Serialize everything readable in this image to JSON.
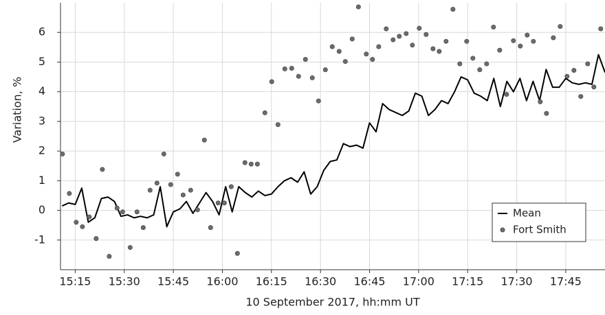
{
  "chart_data": {
    "type": "line",
    "x_label": "10 September 2017, hh:mm UT",
    "y_label": "Variation, %",
    "xlim": [
      910.5,
      1077
    ],
    "ylim": [
      -2,
      7
    ],
    "xticks": [
      {
        "value": 915,
        "label": "15:15"
      },
      {
        "value": 930,
        "label": "15:30"
      },
      {
        "value": 945,
        "label": "15:45"
      },
      {
        "value": 960,
        "label": "16:00"
      },
      {
        "value": 975,
        "label": "16:15"
      },
      {
        "value": 990,
        "label": "16:30"
      },
      {
        "value": 1005,
        "label": "16:45"
      },
      {
        "value": 1020,
        "label": "17:00"
      },
      {
        "value": 1035,
        "label": "17:15"
      },
      {
        "value": 1050,
        "label": "17:30"
      },
      {
        "value": 1065,
        "label": "17:45"
      }
    ],
    "yticks": [
      -1,
      0,
      1,
      2,
      3,
      4,
      5,
      6
    ],
    "grid": true,
    "legend": "lower right",
    "series": [
      {
        "name": "Mean",
        "color": "#000000",
        "style": "line",
        "x": [
          911,
          913,
          915,
          917,
          919,
          921,
          923,
          925,
          927,
          929,
          931,
          933,
          935,
          937,
          939,
          941,
          943,
          945,
          947,
          949,
          951,
          953,
          955,
          957,
          959,
          961,
          963,
          965,
          967,
          969,
          971,
          973,
          975,
          977,
          979,
          981,
          983,
          985,
          987,
          989,
          991,
          993,
          995,
          997,
          999,
          1001,
          1003,
          1005,
          1007,
          1009,
          1011,
          1013,
          1015,
          1017,
          1019,
          1021,
          1023,
          1025,
          1027,
          1029,
          1031,
          1033,
          1035,
          1037,
          1039,
          1041,
          1043,
          1045,
          1047,
          1049,
          1051,
          1053,
          1055,
          1057,
          1059,
          1061,
          1063,
          1065,
          1067,
          1069,
          1071,
          1073,
          1075,
          1077
        ],
        "values": [
          0.15,
          0.25,
          0.2,
          0.75,
          -0.4,
          -0.25,
          0.4,
          0.45,
          0.3,
          -0.2,
          -0.15,
          -0.25,
          -0.2,
          -0.25,
          -0.15,
          0.8,
          -0.55,
          -0.05,
          0.05,
          0.3,
          -0.1,
          0.25,
          0.6,
          0.3,
          -0.15,
          0.8,
          -0.05,
          0.8,
          0.6,
          0.45,
          0.65,
          0.5,
          0.55,
          0.8,
          1.0,
          1.1,
          0.95,
          1.3,
          0.55,
          0.8,
          1.35,
          1.65,
          1.7,
          2.25,
          2.15,
          2.2,
          2.1,
          2.95,
          2.65,
          3.6,
          3.4,
          3.3,
          3.2,
          3.35,
          3.95,
          3.85,
          3.2,
          3.4,
          3.7,
          3.6,
          4.0,
          4.5,
          4.4,
          3.95,
          3.85,
          3.7,
          4.45,
          3.5,
          4.35,
          4.0,
          4.45,
          3.7,
          4.35,
          3.7,
          4.75,
          4.15,
          4.15,
          4.45,
          4.3,
          4.25,
          4.3,
          4.25,
          5.25,
          4.65
        ]
      },
      {
        "name": "Fort Smith",
        "color": "#6b6b6b",
        "style": "scatter",
        "x": [
          911.1,
          913.2,
          915.3,
          917.2,
          919.3,
          921.4,
          923.3,
          925.4,
          927.8,
          929.5,
          931.8,
          933.9,
          935.8,
          937.9,
          940.0,
          942.1,
          944.2,
          946.3,
          948.0,
          950.3,
          952.4,
          954.5,
          956.4,
          958.7,
          960.6,
          962.7,
          964.6,
          966.9,
          968.8,
          970.7,
          973.0,
          975.1,
          977.0,
          979.1,
          981.2,
          983.3,
          985.4,
          987.5,
          989.4,
          991.5,
          993.6,
          995.7,
          997.6,
          999.7,
          1001.6,
          1004.0,
          1005.9,
          1007.8,
          1010.1,
          1012.2,
          1014.1,
          1016.2,
          1018.1,
          1020.2,
          1022.3,
          1024.4,
          1026.3,
          1028.4,
          1030.5,
          1032.6,
          1034.7,
          1036.6,
          1038.7,
          1040.8,
          1042.9,
          1044.8,
          1046.9,
          1049.0,
          1051.1,
          1053.2,
          1055.1,
          1057.2,
          1059.1,
          1061.2,
          1063.3,
          1065.4,
          1067.5,
          1069.6,
          1071.7,
          1073.6,
          1075.7
        ],
        "values": [
          1.9,
          0.57,
          -0.4,
          -0.55,
          -0.22,
          -0.95,
          1.38,
          -1.55,
          0.08,
          -0.05,
          -1.25,
          -0.05,
          -0.58,
          0.68,
          0.92,
          1.9,
          0.87,
          1.22,
          0.52,
          0.68,
          0.02,
          2.37,
          -0.58,
          0.25,
          0.25,
          0.8,
          -1.45,
          1.61,
          1.56,
          1.56,
          3.29,
          4.34,
          2.89,
          4.77,
          4.79,
          4.52,
          5.09,
          4.47,
          3.69,
          4.74,
          5.52,
          5.36,
          5.02,
          5.78,
          6.86,
          5.27,
          5.09,
          5.52,
          6.12,
          5.75,
          5.87,
          5.96,
          5.57,
          6.14,
          5.93,
          5.45,
          5.36,
          5.7,
          6.78,
          4.94,
          5.7,
          5.13,
          4.74,
          4.94,
          6.18,
          5.4,
          3.91,
          5.72,
          5.54,
          5.91,
          5.7,
          3.66,
          3.27,
          5.82,
          6.2,
          4.52,
          4.72,
          3.84,
          4.94,
          4.16,
          6.12
        ]
      }
    ]
  }
}
